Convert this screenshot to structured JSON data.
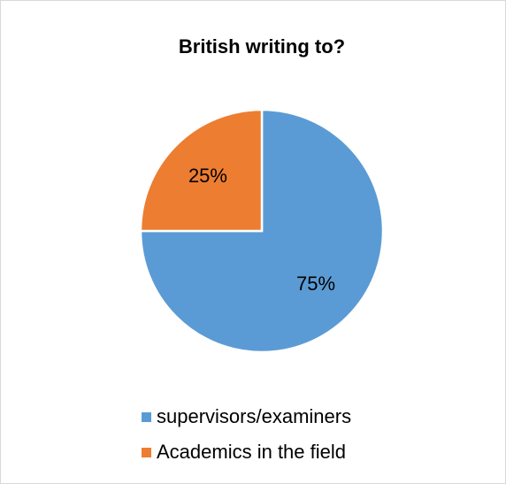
{
  "chart_data": {
    "type": "pie",
    "title": "British writing to?",
    "categories": [
      "supervisors/examiners",
      "Academics in the field"
    ],
    "values": [
      75,
      25
    ],
    "labels": [
      "75%",
      "25%"
    ],
    "colors": [
      "#5b9bd5",
      "#ed7d31"
    ],
    "legend_position": "bottom"
  }
}
